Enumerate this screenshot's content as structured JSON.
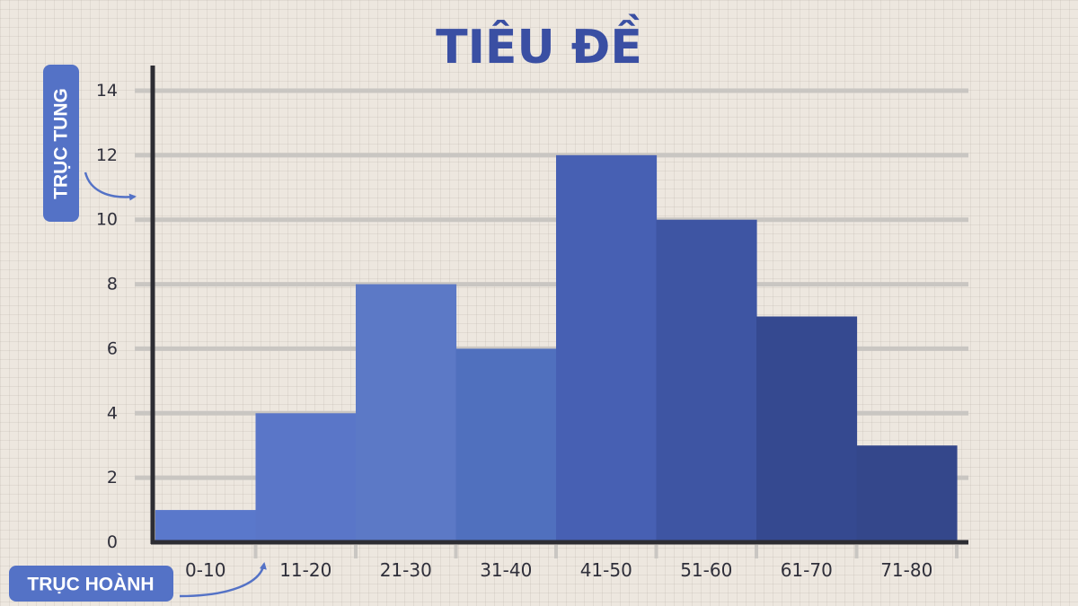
{
  "chart_data": {
    "type": "bar",
    "title": "TIÊU ĐỀ",
    "xlabel": "TRỤC HOÀNH",
    "ylabel": "TRỤC TUNG",
    "categories": [
      "0-10",
      "11-20",
      "21-30",
      "31-40",
      "41-50",
      "51-60",
      "61-70",
      "71-80"
    ],
    "values": [
      1,
      4,
      8,
      6,
      12,
      10,
      7,
      3
    ],
    "ylim": [
      0,
      14
    ],
    "yticks": [
      0,
      2,
      4,
      6,
      8,
      10,
      12,
      14
    ],
    "grid": true,
    "colors": {
      "bars": [
        "#5a78cb",
        "#5a76c8",
        "#5c79c6",
        "#5070be",
        "#4760b3",
        "#3e55a3",
        "#354990",
        "#34478b"
      ],
      "title": "#3a4fa3",
      "axis_tag_bg": "#5472c6",
      "grid": "#c9c6c2",
      "axis": "#2d2d33",
      "background": "#ede7df"
    }
  }
}
